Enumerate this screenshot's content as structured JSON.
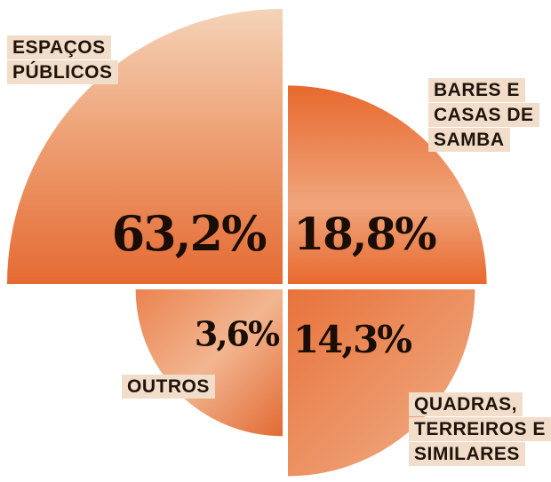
{
  "chart_data": {
    "type": "pie",
    "categories": [
      "ESPAÇOS PÚBLICOS",
      "BARES E CASAS DE SAMBA",
      "QUADRAS, TERREIROS E SIMILARES",
      "OUTROS"
    ],
    "values": [
      63.2,
      18.8,
      14.3,
      3.6
    ],
    "value_labels": [
      "63,2%",
      "18,8%",
      "14,3%",
      "3,6%"
    ],
    "colors": [
      "#eea276",
      "#e8692e",
      "#e8733b",
      "#eb8350"
    ]
  }
}
